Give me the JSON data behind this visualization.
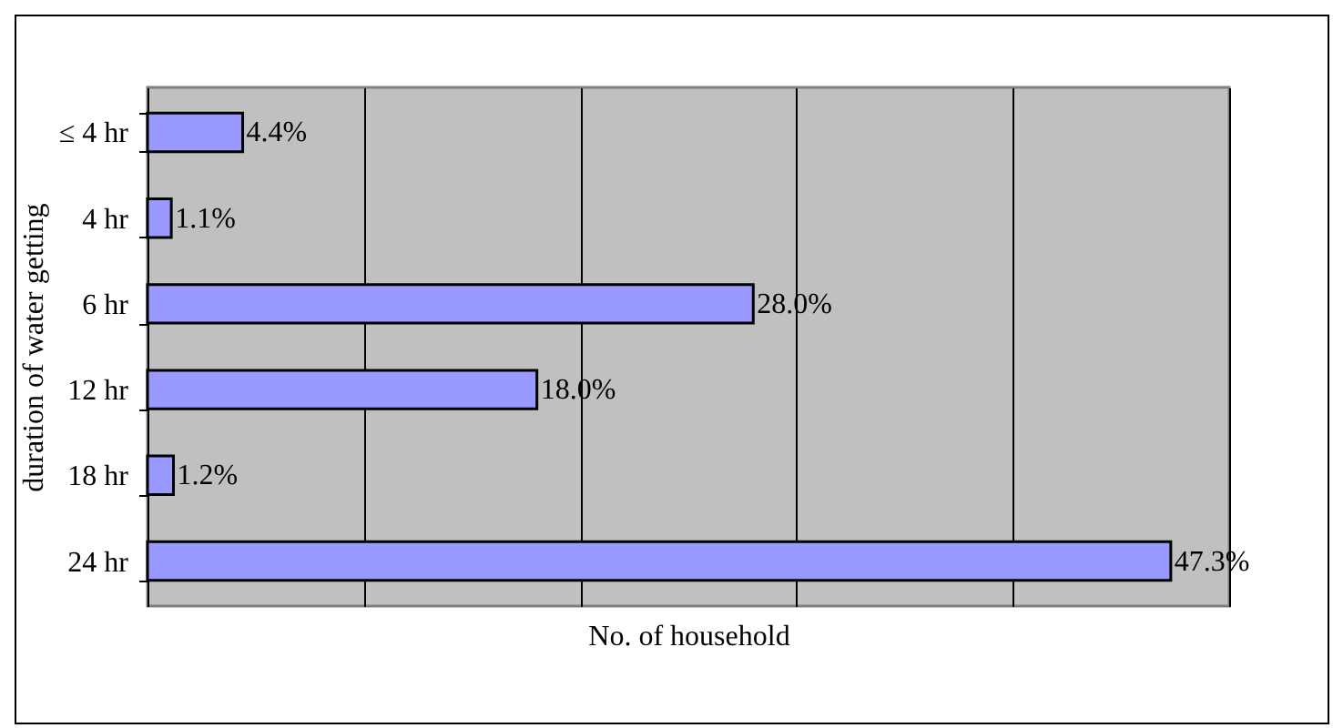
{
  "chart_data": {
    "type": "bar",
    "orientation": "horizontal",
    "categories": [
      "≤ 4 hr",
      "4 hr",
      "6 hr",
      "12 hr",
      "18 hr",
      "24 hr"
    ],
    "values": [
      4.4,
      1.1,
      28.0,
      18.0,
      1.2,
      47.3
    ],
    "value_labels": [
      "4.4%",
      "1.1%",
      "28.0%",
      "18.0%",
      "1.2%",
      "47.3%"
    ],
    "color": "#9999ff",
    "xlabel": "No. of household",
    "ylabel": "duration of water getting",
    "xlim": [
      0,
      50
    ],
    "xticks": [
      {
        "value": 0,
        "label": null
      },
      {
        "value": 10,
        "label": null
      },
      {
        "value": 20,
        "label": null
      },
      {
        "value": 30,
        "label": null
      },
      {
        "value": 40,
        "label": null
      },
      {
        "value": 50,
        "label": null
      }
    ],
    "tick_labels": "y",
    "grid": "x"
  }
}
